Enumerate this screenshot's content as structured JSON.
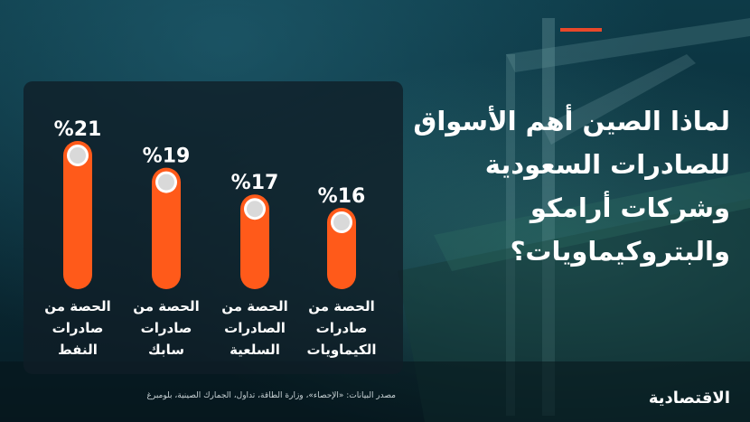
{
  "title_lines": [
    "لماذا الصين أهم الأسواق",
    "للصادرات السعودية",
    "وشركات أرامكو",
    "والبتروكيماويات؟"
  ],
  "source": "مصدر البيانات: «الإحصاء»، وزارة الطاقة، تداول، الجمارك الصينية، بلومبرغ",
  "logo": "الاقتصادية",
  "colors": {
    "accent": "#e8482a",
    "bar": "#ff5a1a",
    "panel": "#0f1e26"
  },
  "chart_data": {
    "type": "bar",
    "categories": [
      [
        "الحصة من",
        "صادرات",
        "النفط"
      ],
      [
        "الحصة من",
        "صادرات",
        "سابك"
      ],
      [
        "الحصة من",
        "الصادرات",
        "السلعية"
      ],
      [
        "الحصة من",
        "صادرات",
        "الكيماويات"
      ]
    ],
    "values": [
      21,
      19,
      17,
      16
    ],
    "value_labels": [
      "%21",
      "%19",
      "%17",
      "%16"
    ],
    "ylim": [
      0,
      21
    ]
  }
}
